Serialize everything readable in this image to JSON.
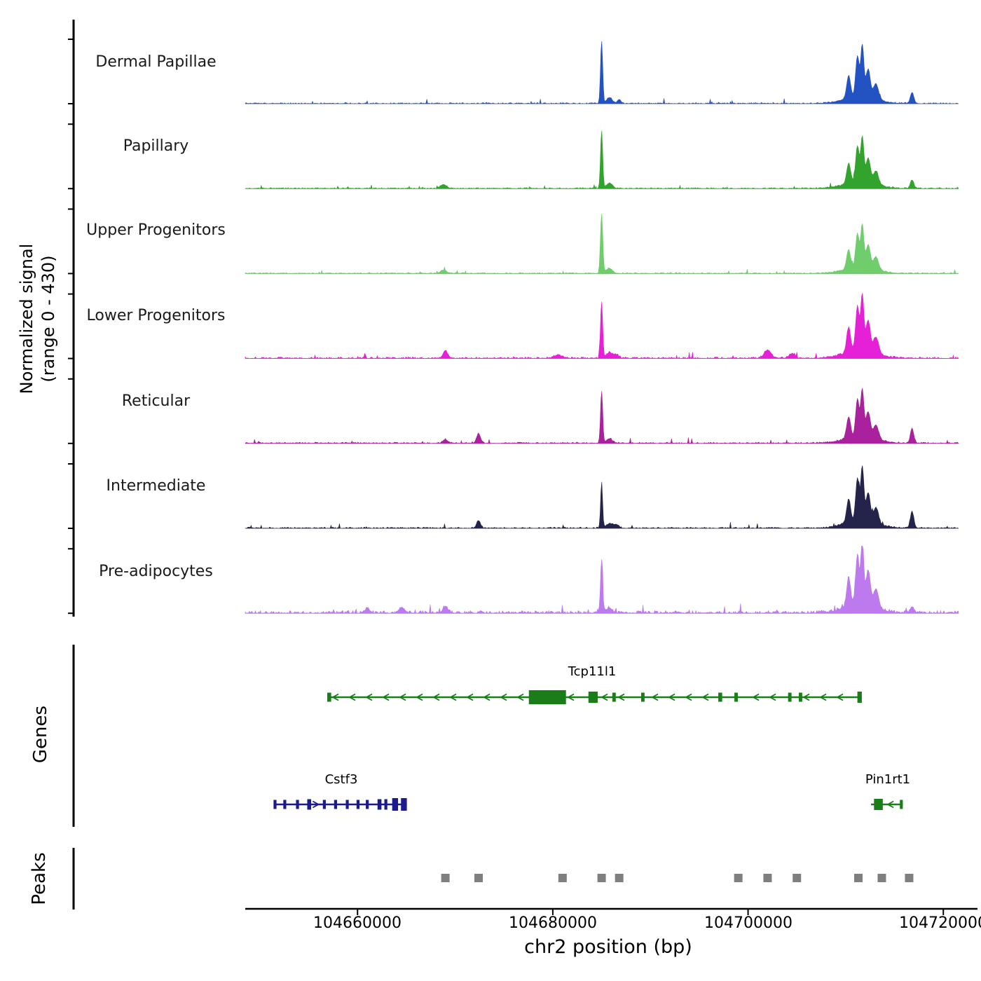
{
  "figure": {
    "ylabel_line1": "Normalized signal",
    "ylabel_line2": "(range 0 - 430)",
    "genes_label": "Genes",
    "peaks_label": "Peaks"
  },
  "chart_data": {
    "type": "area",
    "title": "",
    "xlabel": "chr2 position (bp)",
    "ylabel": "Normalized signal (range 0 - 430)",
    "x_range_bp": [
      104648500,
      104723500
    ],
    "y_range_per_track": [
      0,
      430
    ],
    "x_ticks": [
      {
        "pos": 104660000,
        "label": "104660000"
      },
      {
        "pos": 104680000,
        "label": "104680000"
      },
      {
        "pos": 104700000,
        "label": "104700000"
      },
      {
        "pos": 104720000,
        "label": "104720000"
      }
    ],
    "tracks": [
      {
        "label": "Dermal Papillae",
        "color": "#2353c3",
        "seed": 1,
        "noise": 1.0,
        "peaks": [
          {
            "p": 104685000,
            "v": 420,
            "s": 110
          },
          {
            "p": 104685800,
            "v": 40,
            "s": 300
          },
          {
            "p": 104686800,
            "v": 22,
            "s": 200
          },
          {
            "p": 104710300,
            "v": 150,
            "s": 200
          },
          {
            "p": 104711200,
            "v": 270,
            "s": 180
          },
          {
            "p": 104711700,
            "v": 340,
            "s": 160
          },
          {
            "p": 104712300,
            "v": 185,
            "s": 220
          },
          {
            "p": 104713100,
            "v": 100,
            "s": 260
          },
          {
            "p": 104711500,
            "v": 50,
            "s": 1600
          },
          {
            "p": 104716800,
            "v": 75,
            "s": 180
          }
        ]
      },
      {
        "label": "Papillary",
        "color": "#32a32c",
        "seed": 2,
        "noise": 1.0,
        "peaks": [
          {
            "p": 104685000,
            "v": 390,
            "s": 110
          },
          {
            "p": 104685800,
            "v": 35,
            "s": 300
          },
          {
            "p": 104668800,
            "v": 28,
            "s": 300
          },
          {
            "p": 104710300,
            "v": 135,
            "s": 200
          },
          {
            "p": 104711200,
            "v": 240,
            "s": 180
          },
          {
            "p": 104711700,
            "v": 300,
            "s": 160
          },
          {
            "p": 104712300,
            "v": 165,
            "s": 220
          },
          {
            "p": 104713100,
            "v": 90,
            "s": 260
          },
          {
            "p": 104711500,
            "v": 45,
            "s": 1600
          },
          {
            "p": 104716800,
            "v": 55,
            "s": 180
          }
        ]
      },
      {
        "label": "Upper Progenitors",
        "color": "#6fce6b",
        "seed": 3,
        "noise": 1.0,
        "peaks": [
          {
            "p": 104685000,
            "v": 400,
            "s": 120
          },
          {
            "p": 104685800,
            "v": 35,
            "s": 300
          },
          {
            "p": 104668800,
            "v": 22,
            "s": 300
          },
          {
            "p": 104710300,
            "v": 125,
            "s": 200
          },
          {
            "p": 104711200,
            "v": 225,
            "s": 180
          },
          {
            "p": 104711700,
            "v": 285,
            "s": 160
          },
          {
            "p": 104712300,
            "v": 155,
            "s": 220
          },
          {
            "p": 104713100,
            "v": 85,
            "s": 260
          },
          {
            "p": 104711500,
            "v": 42,
            "s": 1600
          }
        ]
      },
      {
        "label": "Lower Progenitors",
        "color": "#e620d6",
        "seed": 4,
        "noise": 1.5,
        "peaks": [
          {
            "p": 104685000,
            "v": 380,
            "s": 110
          },
          {
            "p": 104685800,
            "v": 38,
            "s": 300
          },
          {
            "p": 104669000,
            "v": 50,
            "s": 250
          },
          {
            "p": 104680500,
            "v": 22,
            "s": 400
          },
          {
            "p": 104686500,
            "v": 25,
            "s": 250
          },
          {
            "p": 104702000,
            "v": 55,
            "s": 350
          },
          {
            "p": 104704500,
            "v": 30,
            "s": 300
          },
          {
            "p": 104710300,
            "v": 165,
            "s": 200
          },
          {
            "p": 104711200,
            "v": 295,
            "s": 180
          },
          {
            "p": 104711700,
            "v": 370,
            "s": 160
          },
          {
            "p": 104712300,
            "v": 205,
            "s": 220
          },
          {
            "p": 104713100,
            "v": 110,
            "s": 260
          },
          {
            "p": 104711500,
            "v": 55,
            "s": 1600
          }
        ]
      },
      {
        "label": "Reticular",
        "color": "#a9219c",
        "seed": 5,
        "noise": 1.2,
        "peaks": [
          {
            "p": 104685000,
            "v": 350,
            "s": 110
          },
          {
            "p": 104685800,
            "v": 32,
            "s": 300
          },
          {
            "p": 104672400,
            "v": 65,
            "s": 200
          },
          {
            "p": 104669000,
            "v": 25,
            "s": 250
          },
          {
            "p": 104710300,
            "v": 140,
            "s": 200
          },
          {
            "p": 104711200,
            "v": 250,
            "s": 180
          },
          {
            "p": 104711700,
            "v": 315,
            "s": 160
          },
          {
            "p": 104712300,
            "v": 170,
            "s": 220
          },
          {
            "p": 104713100,
            "v": 95,
            "s": 260
          },
          {
            "p": 104711500,
            "v": 47,
            "s": 1600
          },
          {
            "p": 104716800,
            "v": 95,
            "s": 180
          }
        ]
      },
      {
        "label": "Intermediate",
        "color": "#24244a",
        "seed": 6,
        "noise": 1.2,
        "peaks": [
          {
            "p": 104685000,
            "v": 310,
            "s": 100
          },
          {
            "p": 104685800,
            "v": 30,
            "s": 300
          },
          {
            "p": 104672400,
            "v": 50,
            "s": 200
          },
          {
            "p": 104686500,
            "v": 25,
            "s": 250
          },
          {
            "p": 104710300,
            "v": 155,
            "s": 200
          },
          {
            "p": 104711200,
            "v": 280,
            "s": 180
          },
          {
            "p": 104711700,
            "v": 355,
            "s": 160
          },
          {
            "p": 104712300,
            "v": 190,
            "s": 220
          },
          {
            "p": 104713100,
            "v": 105,
            "s": 260
          },
          {
            "p": 104711500,
            "v": 52,
            "s": 1600
          },
          {
            "p": 104716800,
            "v": 110,
            "s": 180
          }
        ]
      },
      {
        "label": "Pre-adipocytes",
        "color": "#bd79ee",
        "seed": 7,
        "noise": 2.5,
        "peaks": [
          {
            "p": 104685000,
            "v": 350,
            "s": 110
          },
          {
            "p": 104685800,
            "v": 35,
            "s": 300
          },
          {
            "p": 104669000,
            "v": 45,
            "s": 250
          },
          {
            "p": 104664500,
            "v": 35,
            "s": 300
          },
          {
            "p": 104661000,
            "v": 25,
            "s": 300
          },
          {
            "p": 104710300,
            "v": 190,
            "s": 200
          },
          {
            "p": 104711200,
            "v": 330,
            "s": 180
          },
          {
            "p": 104711700,
            "v": 430,
            "s": 150
          },
          {
            "p": 104712300,
            "v": 230,
            "s": 220
          },
          {
            "p": 104713100,
            "v": 120,
            "s": 260
          },
          {
            "p": 104711500,
            "v": 60,
            "s": 1600
          },
          {
            "p": 104716800,
            "v": 40,
            "s": 200
          }
        ]
      }
    ],
    "genes": [
      {
        "name": "Tcp11l1",
        "color": "#1a7d1a",
        "strand": "-",
        "start": 104656900,
        "end": 104711650,
        "row": 0,
        "exons": [
          [
            104656900,
            104657300,
            13
          ],
          [
            104677550,
            104681350,
            20
          ],
          [
            104683650,
            104684600,
            16
          ],
          [
            104686100,
            104686450,
            13
          ],
          [
            104689050,
            104689400,
            13
          ],
          [
            104696950,
            104697350,
            13
          ],
          [
            104698600,
            104698950,
            13
          ],
          [
            104704100,
            104704450,
            13
          ],
          [
            104705200,
            104705550,
            13
          ],
          [
            104711200,
            104711650,
            16
          ]
        ]
      },
      {
        "name": "Cstf3",
        "color": "#1b1b8f",
        "strand": "+",
        "start": 104651400,
        "end": 104665050,
        "row": 1,
        "exons": [
          [
            104651400,
            104651700,
            13
          ],
          [
            104652400,
            104652700,
            13
          ],
          [
            104653700,
            104654000,
            13
          ],
          [
            104654850,
            104655250,
            15
          ],
          [
            104656450,
            104656750,
            13
          ],
          [
            104657600,
            104657900,
            13
          ],
          [
            104658800,
            104659100,
            13
          ],
          [
            104659900,
            104660200,
            13
          ],
          [
            104660850,
            104661150,
            13
          ],
          [
            104662050,
            104662450,
            15
          ],
          [
            104662750,
            104663050,
            15
          ],
          [
            104663550,
            104664150,
            18
          ],
          [
            104664450,
            104665050,
            18
          ]
        ]
      },
      {
        "name": "Pin1rt1",
        "color": "#1a7d1a",
        "strand": "-",
        "start": 104712600,
        "end": 104715850,
        "row": 1,
        "exons": [
          [
            104712900,
            104713800,
            16
          ],
          [
            104715550,
            104715850,
            13
          ]
        ]
      }
    ],
    "peaks_track": {
      "color": "#7f7f7f",
      "positions": [
        104669000,
        104672400,
        104681000,
        104685000,
        104686800,
        104699000,
        104702000,
        104705000,
        104711300,
        104713700,
        104716500
      ]
    }
  }
}
